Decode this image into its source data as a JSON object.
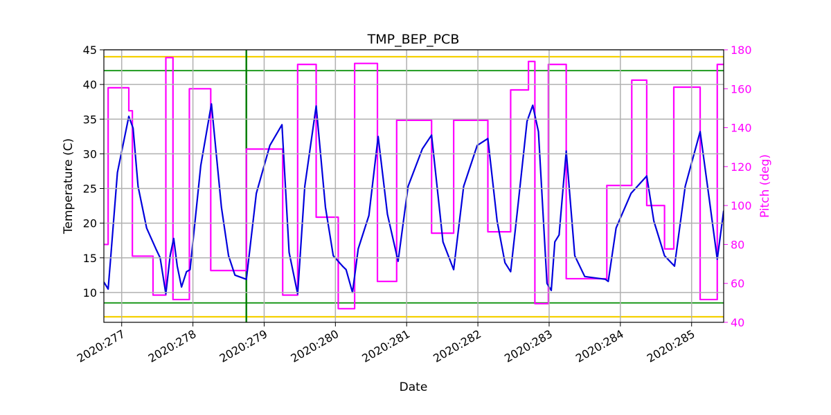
{
  "chart_data": {
    "type": "line",
    "title": "TMP_BEP_PCB",
    "xlabel": "Date",
    "ylabel": "Temperature (C)",
    "y2label": "Pitch (deg)",
    "y2color": "#ff00ff",
    "xlim": [
      276.75,
      285.45
    ],
    "xticks": [
      {
        "value": 277,
        "label": "2020:277"
      },
      {
        "value": 278,
        "label": "2020:278"
      },
      {
        "value": 279,
        "label": "2020:279"
      },
      {
        "value": 280,
        "label": "2020:280"
      },
      {
        "value": 281,
        "label": "2020:281"
      },
      {
        "value": 282,
        "label": "2020:282"
      },
      {
        "value": 283,
        "label": "2020:283"
      },
      {
        "value": 284,
        "label": "2020:284"
      },
      {
        "value": 285,
        "label": "2020:285"
      }
    ],
    "ylim": [
      5.7,
      45
    ],
    "yticks": [
      10,
      15,
      20,
      25,
      30,
      35,
      40,
      45
    ],
    "y2lim": [
      40,
      180
    ],
    "y2ticks": [
      40,
      60,
      80,
      100,
      120,
      140,
      160,
      180
    ],
    "grid": true,
    "hlines": [
      {
        "value": 44,
        "color": "#f5d000"
      },
      {
        "value": 42,
        "color": "#2ca02c"
      },
      {
        "value": 8.5,
        "color": "#2ca02c"
      },
      {
        "value": 6.5,
        "color": "#f5d000"
      }
    ],
    "vlines": [
      {
        "value": 278.75,
        "color": "#008000"
      }
    ],
    "series": [
      {
        "name": "Pitch",
        "color": "#ff00ff",
        "axis": "y2",
        "x": [
          276.75,
          276.81,
          276.81,
          277.1,
          277.1,
          277.15,
          277.15,
          277.44,
          277.44,
          277.62,
          277.62,
          277.72,
          277.72,
          277.95,
          277.95,
          278.25,
          278.25,
          278.75,
          278.75,
          279.26,
          279.26,
          279.47,
          279.47,
          279.73,
          279.73,
          280.04,
          280.04,
          280.27,
          280.27,
          280.59,
          280.59,
          280.86,
          280.86,
          281.35,
          281.35,
          281.66,
          281.66,
          282.14,
          282.14,
          282.46,
          282.46,
          282.71,
          282.71,
          282.8,
          282.8,
          282.99,
          282.99,
          283.24,
          283.24,
          283.81,
          283.81,
          284.16,
          284.16,
          284.37,
          284.37,
          284.62,
          284.62,
          284.75,
          284.75,
          285.12,
          285.12,
          285.36,
          285.36,
          285.45
        ],
        "values": [
          80,
          80,
          160.5,
          160.5,
          148.7,
          148.7,
          74,
          74,
          54,
          54,
          176,
          176,
          51.7,
          51.7,
          160,
          160,
          66.6,
          66.6,
          129,
          129,
          54,
          54,
          172.5,
          172.5,
          94,
          94,
          47,
          47,
          173,
          173,
          61,
          61,
          143.8,
          143.8,
          85.8,
          85.8,
          143.8,
          143.8,
          86.5,
          86.5,
          159.4,
          159.4,
          174,
          174,
          49.6,
          49.6,
          172.5,
          172.5,
          62.4,
          62.4,
          110.3,
          110.3,
          164.4,
          164.4,
          100,
          100,
          77.7,
          77.7,
          160.8,
          160.8,
          51.7,
          51.7,
          172.5,
          172.5
        ]
      },
      {
        "name": "Temperature",
        "color": "#0000dd",
        "axis": "y",
        "x": [
          276.75,
          276.81,
          276.84,
          276.94,
          277.1,
          277.16,
          277.23,
          277.35,
          277.48,
          277.54,
          277.62,
          277.68,
          277.73,
          277.78,
          277.84,
          277.91,
          277.96,
          278.11,
          278.26,
          278.4,
          278.5,
          278.59,
          278.75,
          278.89,
          279.08,
          279.25,
          279.35,
          279.47,
          279.57,
          279.73,
          279.86,
          279.97,
          280.1,
          280.15,
          280.24,
          280.32,
          280.47,
          280.6,
          280.73,
          280.88,
          281.02,
          281.22,
          281.35,
          281.51,
          281.66,
          281.8,
          281.99,
          282.14,
          282.27,
          282.38,
          282.46,
          282.56,
          282.69,
          282.77,
          282.85,
          282.97,
          283.03,
          283.08,
          283.14,
          283.24,
          283.36,
          283.5,
          283.79,
          283.83,
          283.94,
          284.15,
          284.37,
          284.47,
          284.62,
          284.76,
          284.91,
          285.12,
          285.25,
          285.36,
          285.45
        ],
        "values": [
          11.5,
          10.5,
          14.3,
          27.3,
          35.4,
          33.7,
          25.3,
          19.3,
          16.3,
          15.0,
          9.8,
          15.3,
          17.8,
          13.8,
          10.8,
          13.0,
          13.3,
          28.3,
          37.2,
          22.3,
          15.3,
          12.5,
          11.9,
          24.3,
          31.2,
          34.2,
          15.8,
          9.8,
          25.3,
          36.9,
          22.3,
          15.3,
          13.8,
          13.3,
          10.0,
          16.3,
          21.1,
          32.5,
          21.3,
          14.5,
          25.3,
          30.7,
          32.7,
          17.3,
          13.3,
          25.3,
          31.2,
          32.2,
          20.3,
          14.3,
          13.0,
          22.3,
          34.7,
          37.0,
          33.2,
          11.3,
          10.3,
          17.3,
          18.3,
          30.4,
          15.3,
          12.3,
          11.9,
          11.6,
          19.3,
          24.3,
          26.8,
          20.3,
          15.3,
          13.8,
          25.3,
          33.2,
          23.3,
          14.8,
          21.8
        ]
      }
    ]
  }
}
